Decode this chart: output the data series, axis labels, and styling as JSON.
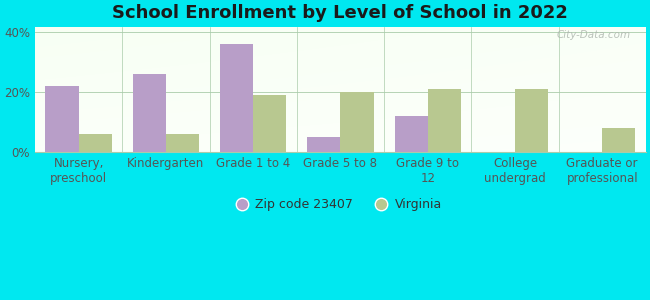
{
  "title": "School Enrollment by Level of School in 2022",
  "categories": [
    "Nursery,\npreschool",
    "Kindergarten",
    "Grade 1 to 4",
    "Grade 5 to 8",
    "Grade 9 to\n12",
    "College\nundergrad",
    "Graduate or\nprofessional"
  ],
  "zip_values": [
    22,
    26,
    36,
    5,
    12,
    0,
    0
  ],
  "va_values": [
    6,
    6,
    19,
    20,
    21,
    21,
    8
  ],
  "zip_color": "#b89ec8",
  "va_color": "#b8c890",
  "background_outer": "#00e8f0",
  "ylim": [
    0,
    42
  ],
  "yticks": [
    0,
    20,
    40
  ],
  "ytick_labels": [
    "0%",
    "20%",
    "40%"
  ],
  "legend_zip_label": "Zip code 23407",
  "legend_va_label": "Virginia",
  "bar_width": 0.38,
  "title_fontsize": 13,
  "tick_fontsize": 8.5,
  "watermark": "City-Data.com"
}
